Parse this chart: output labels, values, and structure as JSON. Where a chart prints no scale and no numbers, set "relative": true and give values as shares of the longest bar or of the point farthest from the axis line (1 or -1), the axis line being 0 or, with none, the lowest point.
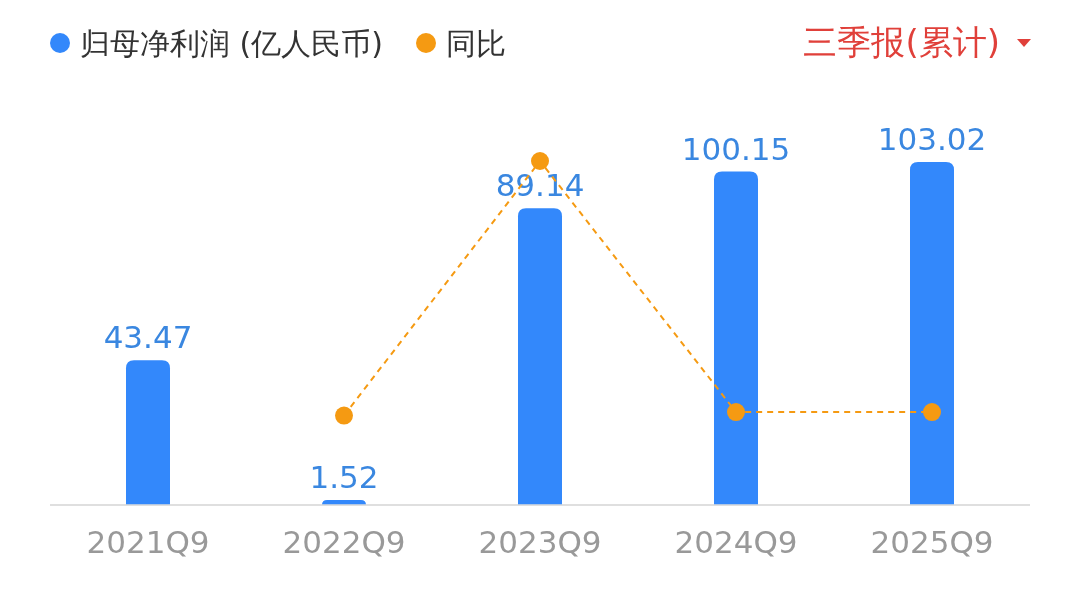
{
  "chart_data": [
    {
      "type": "bar",
      "categories": [
        "2021Q9",
        "2022Q9",
        "2023Q9",
        "2024Q9",
        "2025Q9"
      ],
      "series": [
        {
          "name": "归母净利润 (亿人民币)",
          "color": "#3388fb",
          "values": [
            43.47,
            1.52,
            89.14,
            100.15,
            103.02
          ]
        }
      ],
      "data_labels": true,
      "legend": "top left",
      "annotations": [
        "三季报(累计)"
      ]
    },
    {
      "type": "line",
      "categories": [
        null,
        null,
        null,
        null,
        null
      ],
      "series": [
        {
          "name": "同比",
          "color": "#f59a12",
          "values": [
            null,
            0.26,
            1,
            0.27,
            0.27
          ]
        }
      ],
      "relative": true,
      "legend": "top left",
      "marker": "circle",
      "line_style": "dashed"
    }
  ]
}
